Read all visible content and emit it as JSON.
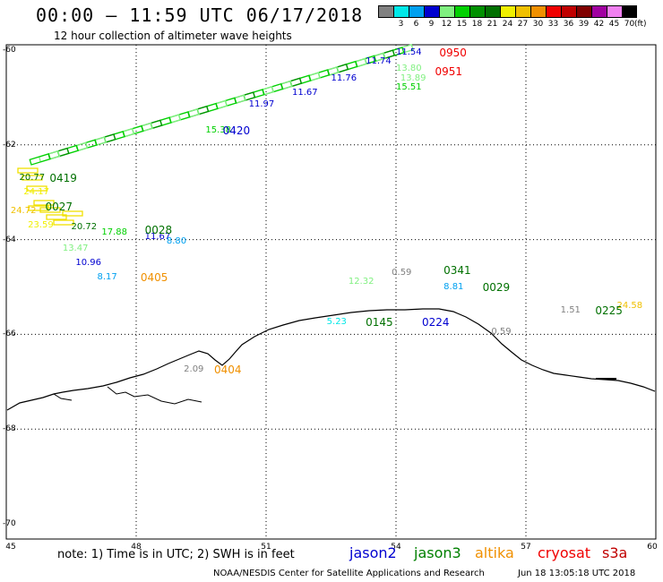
{
  "header": {
    "title": "00:00 – 11:59 UTC 06/17/2018",
    "subtitle": "12 hour collection of altimeter wave heights"
  },
  "legend": {
    "unit": "(ft)",
    "bins": [
      {
        "label": "",
        "color": "#808080"
      },
      {
        "label": "3",
        "color": "#00e8e8"
      },
      {
        "label": "6",
        "color": "#00a0f0"
      },
      {
        "label": "9",
        "color": "#0000d0"
      },
      {
        "label": "12",
        "color": "#80f080"
      },
      {
        "label": "15",
        "color": "#00d000"
      },
      {
        "label": "18",
        "color": "#009000"
      },
      {
        "label": "21",
        "color": "#007000"
      },
      {
        "label": "24",
        "color": "#f0f000"
      },
      {
        "label": "27",
        "color": "#f0c000"
      },
      {
        "label": "30",
        "color": "#f09000"
      },
      {
        "label": "33",
        "color": "#f00000"
      },
      {
        "label": "36",
        "color": "#c00000"
      },
      {
        "label": "39",
        "color": "#800000"
      },
      {
        "label": "42",
        "color": "#a000a0"
      },
      {
        "label": "45",
        "color": "#f080f0"
      },
      {
        "label": "70",
        "color": "#000000"
      }
    ]
  },
  "axes": {
    "lat_labels": [
      "-60",
      "-62",
      "-64",
      "-66",
      "-68",
      "-70"
    ],
    "lon_labels": [
      "45",
      "48",
      "51",
      "54",
      "57",
      "60"
    ]
  },
  "observations": [
    {
      "text": "11.54",
      "color": "#0000d0",
      "lon": 54.0,
      "lat": -60.05
    },
    {
      "text": "11.74",
      "color": "#0000d0",
      "lon": 53.3,
      "lat": -60.25
    },
    {
      "text": "11.76",
      "color": "#0000d0",
      "lon": 52.5,
      "lat": -60.6
    },
    {
      "text": "11.67",
      "color": "#0000d0",
      "lon": 51.6,
      "lat": -60.9
    },
    {
      "text": "11.97",
      "color": "#0000d0",
      "lon": 50.6,
      "lat": -61.15
    },
    {
      "text": "13.80",
      "color": "#80f080",
      "lon": 54.0,
      "lat": -60.4
    },
    {
      "text": "13.89",
      "color": "#80f080",
      "lon": 54.1,
      "lat": -60.6
    },
    {
      "text": "15.51",
      "color": "#00d000",
      "lon": 54.0,
      "lat": -60.8
    },
    {
      "text": "15.38",
      "color": "#00d000",
      "lon": 49.6,
      "lat": -61.7
    },
    {
      "text": "20.77",
      "color": "#007000",
      "lon": 45.3,
      "lat": -62.7
    },
    {
      "text": "24.17",
      "color": "#f0f000",
      "lon": 45.4,
      "lat": -63.0
    },
    {
      "text": "24.72",
      "color": "#f0c000",
      "lon": 45.1,
      "lat": -63.4
    },
    {
      "text": "23.59",
      "color": "#f0f000",
      "lon": 45.5,
      "lat": -63.7
    },
    {
      "text": "20.72",
      "color": "#007000",
      "lon": 46.5,
      "lat": -63.75
    },
    {
      "text": "17.88",
      "color": "#00d000",
      "lon": 47.2,
      "lat": -63.85
    },
    {
      "text": "11.67",
      "color": "#0000d0",
      "lon": 48.2,
      "lat": -63.95
    },
    {
      "text": "8.80",
      "color": "#00a0f0",
      "lon": 48.7,
      "lat": -64.05
    },
    {
      "text": "13.47",
      "color": "#80f080",
      "lon": 46.3,
      "lat": -64.2
    },
    {
      "text": "10.96",
      "color": "#0000d0",
      "lon": 46.6,
      "lat": -64.5
    },
    {
      "text": "8.17",
      "color": "#00a0f0",
      "lon": 47.1,
      "lat": -64.8
    },
    {
      "text": "0.59",
      "color": "#808080",
      "lon": 53.9,
      "lat": -64.7
    },
    {
      "text": "12.32",
      "color": "#80f080",
      "lon": 52.9,
      "lat": -64.9
    },
    {
      "text": "8.81",
      "color": "#00a0f0",
      "lon": 55.1,
      "lat": -65.0
    },
    {
      "text": "1.51",
      "color": "#808080",
      "lon": 57.8,
      "lat": -65.5
    },
    {
      "text": "24.58",
      "color": "#f0c000",
      "lon": 59.1,
      "lat": -65.4
    },
    {
      "text": "5.23",
      "color": "#00e8e8",
      "lon": 52.4,
      "lat": -65.75
    },
    {
      "text": "0.59",
      "color": "#808080",
      "lon": 56.2,
      "lat": -65.95
    },
    {
      "text": "2.09",
      "color": "#808080",
      "lon": 49.1,
      "lat": -66.75
    }
  ],
  "pass_times": [
    {
      "text": "0950",
      "color": "#f00000",
      "lon": 55.0,
      "lat": -60.05
    },
    {
      "text": "0951",
      "color": "#f00000",
      "lon": 54.9,
      "lat": -60.45
    },
    {
      "text": "0420",
      "color": "#0000d0",
      "lon": 50.0,
      "lat": -61.7
    },
    {
      "text": "0419",
      "color": "#007000",
      "lon": 46.0,
      "lat": -62.7
    },
    {
      "text": "0027",
      "color": "#007000",
      "lon": 45.9,
      "lat": -63.3
    },
    {
      "text": "0028",
      "color": "#007000",
      "lon": 48.2,
      "lat": -63.8
    },
    {
      "text": "0405",
      "color": "#f09000",
      "lon": 48.1,
      "lat": -64.8
    },
    {
      "text": "0341",
      "color": "#007000",
      "lon": 55.1,
      "lat": -64.65
    },
    {
      "text": "0029",
      "color": "#007000",
      "lon": 56.0,
      "lat": -65.0
    },
    {
      "text": "0225",
      "color": "#007000",
      "lon": 58.6,
      "lat": -65.5
    },
    {
      "text": "0145",
      "color": "#007000",
      "lon": 53.3,
      "lat": -65.75
    },
    {
      "text": "0224",
      "color": "#0000d0",
      "lon": 54.6,
      "lat": -65.75
    },
    {
      "text": "0404",
      "color": "#f09000",
      "lon": 49.8,
      "lat": -66.75
    }
  ],
  "footer": {
    "note": "note: 1) Time is in UTC; 2) SWH is in feet",
    "satellites": [
      {
        "name": "jason2",
        "color": "#0000d0"
      },
      {
        "name": "jason3",
        "color": "#008000"
      },
      {
        "name": "altika",
        "color": "#f09000"
      },
      {
        "name": "cryosat",
        "color": "#f00000"
      },
      {
        "name": "s3a",
        "color": "#c00000"
      }
    ],
    "credit": "NOAA/NESDIS Center for Satellite Applications and Research",
    "timestamp": "Jun 18 13:05:18 UTC 2018"
  }
}
